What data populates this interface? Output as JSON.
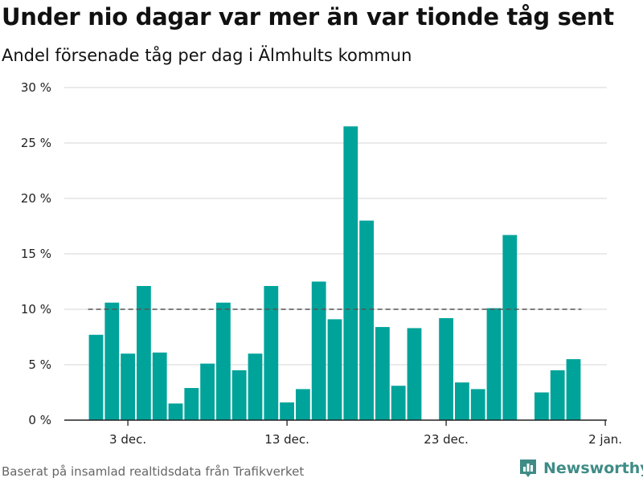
{
  "header": {
    "title": "Under nio dagar var mer än var tionde tåg sent",
    "subtitle": "Andel försenade tåg per dag i Älmhults kommun"
  },
  "footer": {
    "source": "Baserat på insamlad realtidsdata från Trafikverket",
    "brand": "Newsworthy"
  },
  "colors": {
    "bar": "#00a39a",
    "grid": "#dddddd",
    "reference_line": "#555555",
    "brand": "#3f8c86"
  },
  "icons": {
    "brand_logo": "bar-chart-logo-icon"
  },
  "chart_data": {
    "type": "bar",
    "x_unit": "date",
    "x": [
      "2019-12-01",
      "2019-12-02",
      "2019-12-03",
      "2019-12-04",
      "2019-12-05",
      "2019-12-06",
      "2019-12-07",
      "2019-12-08",
      "2019-12-09",
      "2019-12-10",
      "2019-12-11",
      "2019-12-12",
      "2019-12-13",
      "2019-12-14",
      "2019-12-15",
      "2019-12-16",
      "2019-12-17",
      "2019-12-18",
      "2019-12-19",
      "2019-12-20",
      "2019-12-21",
      "2019-12-22",
      "2019-12-23",
      "2019-12-24",
      "2019-12-25",
      "2019-12-26",
      "2019-12-27",
      "2019-12-28",
      "2019-12-29",
      "2019-12-30",
      "2019-12-31"
    ],
    "values": [
      7.7,
      10.6,
      6.0,
      12.1,
      6.1,
      1.5,
      2.9,
      5.1,
      10.6,
      4.5,
      6.0,
      12.1,
      1.6,
      2.8,
      12.5,
      9.1,
      26.5,
      18.0,
      8.4,
      3.1,
      8.3,
      null,
      9.2,
      3.4,
      2.8,
      10.1,
      16.7,
      null,
      2.5,
      4.5,
      5.5
    ],
    "reference_line": 10,
    "ylim": [
      0,
      30
    ],
    "y_ticks": [
      0,
      5,
      10,
      15,
      20,
      25,
      30
    ],
    "y_tick_labels": [
      "0 %",
      "5 %",
      "10 %",
      "15 %",
      "20 %",
      "25 %",
      "30 %"
    ],
    "x_ticks": [
      {
        "date": "2019-12-03",
        "label": "3 dec."
      },
      {
        "date": "2019-12-13",
        "label": "13 dec."
      },
      {
        "date": "2019-12-23",
        "label": "23 dec."
      },
      {
        "date": "2020-01-02",
        "label": "2 jan."
      }
    ],
    "xlabel": "",
    "ylabel": "",
    "grid": true,
    "legend": "none"
  }
}
